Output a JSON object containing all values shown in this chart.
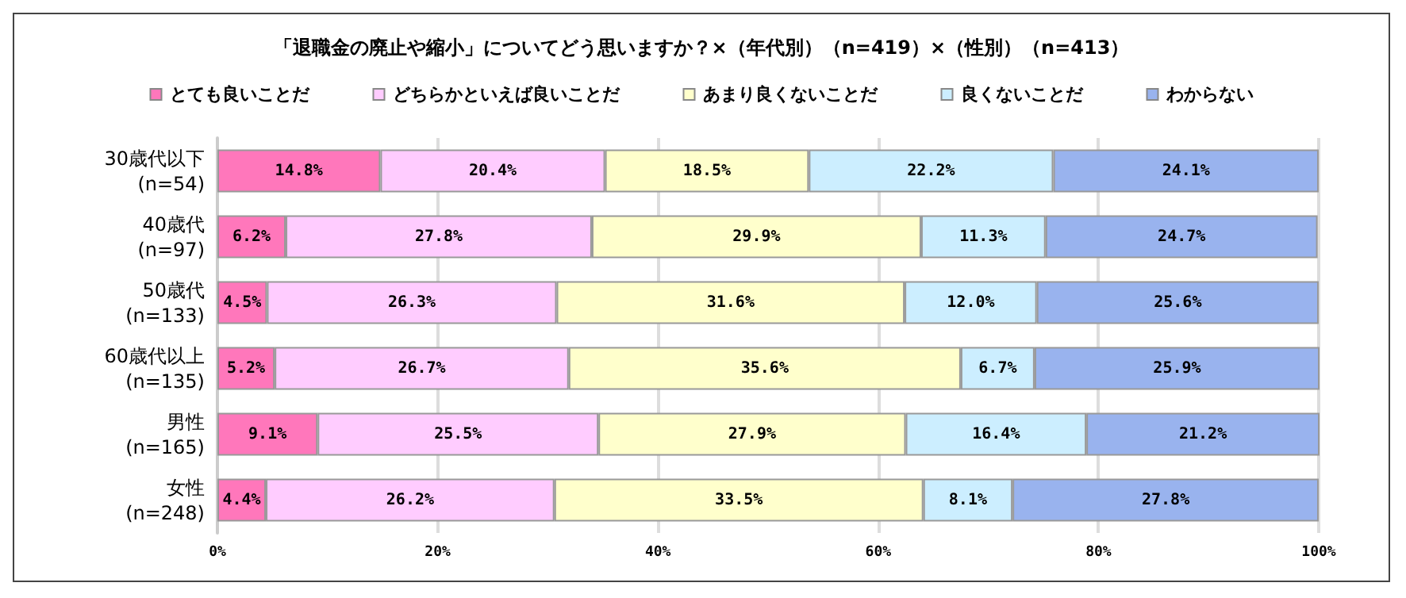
{
  "chart_data": {
    "type": "bar",
    "orientation": "horizontal",
    "stacked": true,
    "title": "「退職金の廃止や縮小」についてどう思いますか？×（年代別）（n=419）×（性別）（n=413）",
    "categories": [
      "30歳代以下\n(n=54)",
      "40歳代\n(n=97)",
      "50歳代\n(n=133)",
      "60歳代以上\n(n=135)",
      "男性\n(n=165)",
      "女性\n(n=248)"
    ],
    "series": [
      {
        "name": "とても良いことだ",
        "color": "#ff77bb",
        "values": [
          14.8,
          6.2,
          4.5,
          5.2,
          9.1,
          4.4
        ],
        "value_labels": [
          "14.8%",
          "6.2%",
          "4.5%",
          "5.2%",
          "9.1%",
          "4.4%"
        ]
      },
      {
        "name": "どちらかといえば良いことだ",
        "color": "#ffccff",
        "values": [
          20.4,
          27.8,
          26.3,
          26.7,
          25.5,
          26.2
        ],
        "value_labels": [
          "20.4%",
          "27.8%",
          "26.3%",
          "26.7%",
          "25.5%",
          "26.2%"
        ]
      },
      {
        "name": "あまり良くないことだ",
        "color": "#ffffcc",
        "values": [
          18.5,
          29.9,
          31.6,
          35.6,
          27.9,
          33.5
        ],
        "value_labels": [
          "18.5%",
          "29.9%",
          "31.6%",
          "35.6%",
          "27.9%",
          "33.5%"
        ]
      },
      {
        "name": "良くないことだ",
        "color": "#cceeff",
        "values": [
          22.2,
          11.3,
          12.0,
          6.7,
          16.4,
          8.1
        ],
        "value_labels": [
          "22.2%",
          "11.3%",
          "12.0%",
          "6.7%",
          "16.4%",
          "8.1%"
        ]
      },
      {
        "name": "わからない",
        "color": "#99b3ee",
        "values": [
          24.1,
          24.7,
          25.6,
          25.9,
          21.2,
          27.8
        ],
        "value_labels": [
          "24.1%",
          "24.7%",
          "25.6%",
          "25.9%",
          "21.2%",
          "27.8%"
        ]
      }
    ],
    "xlim": [
      0,
      100
    ],
    "xticks": [
      {
        "value": 0,
        "label": "0%"
      },
      {
        "value": 20,
        "label": "20%"
      },
      {
        "value": 40,
        "label": "40%"
      },
      {
        "value": 60,
        "label": "60%"
      },
      {
        "value": 80,
        "label": "80%"
      },
      {
        "value": 100,
        "label": "100%"
      }
    ],
    "grid": "x",
    "legend": "top"
  }
}
